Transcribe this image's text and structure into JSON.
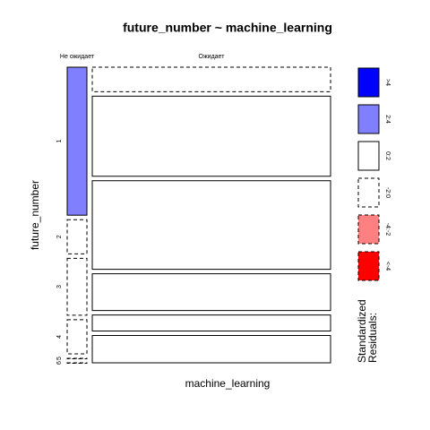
{
  "chart_data": {
    "type": "mosaic",
    "title": "future_number ~ machine_learning",
    "x_label": "machine_learning",
    "y_label": "future_number",
    "x_categories": [
      "Не ожидает",
      "Ожидает"
    ],
    "y_categories": [
      "1",
      "2",
      "3",
      "4",
      "5",
      "6"
    ],
    "counts": [
      [
        13,
        3,
        5,
        3,
        0,
        0
      ],
      [
        26,
        85,
        94,
        39,
        17,
        29
      ]
    ],
    "residuals": [
      [
        3.0,
        -0.5,
        -0.3,
        -0.4,
        -0.6,
        -0.6
      ],
      [
        -1.0,
        0.5,
        0.4,
        0.3,
        0.2,
        0.2
      ]
    ],
    "legend": {
      "title": [
        "Standardized",
        "Residuals:"
      ],
      "breaks": [
        -4,
        -2,
        0,
        2,
        4
      ],
      "entries": [
        {
          "label": "<-4",
          "color": "#ff0000",
          "dashed": true
        },
        {
          "label": "-4:-2",
          "color": "#ff8080",
          "dashed": true
        },
        {
          "label": "-2:0",
          "color": "#ffffff",
          "dashed": true
        },
        {
          "label": "0:2",
          "color": "#ffffff",
          "dashed": false
        },
        {
          "label": "2:4",
          "color": "#8080ff",
          "dashed": false
        },
        {
          "label": ">4",
          "color": "#0000ff",
          "dashed": false
        }
      ]
    }
  }
}
